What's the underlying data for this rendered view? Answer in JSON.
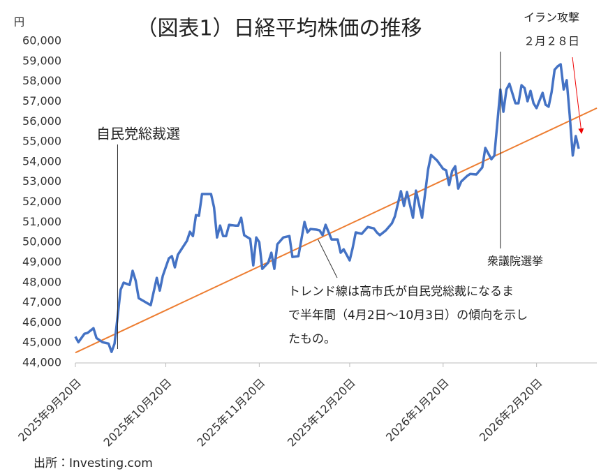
{
  "chart_data": {
    "type": "line",
    "title": "（図表1）日経平均株価の推移",
    "y_unit": "円",
    "source": "出所：Investing.com",
    "xlim": [
      "2025-09-20",
      "2026-03-12"
    ],
    "xticks": [
      {
        "value": "2025-09-20",
        "label": "2025年9月20日"
      },
      {
        "value": "2025-10-20",
        "label": "2025年10月20日"
      },
      {
        "value": "2025-11-20",
        "label": "2025年11月20日"
      },
      {
        "value": "2025-12-20",
        "label": "2025年12月20日"
      },
      {
        "value": "2026-01-20",
        "label": "2026年1月20日"
      },
      {
        "value": "2026-02-20",
        "label": "2026年2月20日"
      }
    ],
    "ylim": [
      44000,
      60000
    ],
    "yticks": [
      {
        "value": 44000,
        "label": "44,000"
      },
      {
        "value": 45000,
        "label": "45,000"
      },
      {
        "value": 46000,
        "label": "46,000"
      },
      {
        "value": 47000,
        "label": "47,000"
      },
      {
        "value": 48000,
        "label": "48,000"
      },
      {
        "value": 49000,
        "label": "49,000"
      },
      {
        "value": 50000,
        "label": "50,000"
      },
      {
        "value": 51000,
        "label": "51,000"
      },
      {
        "value": 52000,
        "label": "52,000"
      },
      {
        "value": 53000,
        "label": "53,000"
      },
      {
        "value": 54000,
        "label": "54,000"
      },
      {
        "value": 55000,
        "label": "55,000"
      },
      {
        "value": 56000,
        "label": "56,000"
      },
      {
        "value": 57000,
        "label": "57,000"
      },
      {
        "value": 58000,
        "label": "58,000"
      },
      {
        "value": 59000,
        "label": "59,000"
      },
      {
        "value": 60000,
        "label": "60,000"
      }
    ],
    "grid": false,
    "series": [
      {
        "color": "#4472c4",
        "x": [
          "2025-09-20",
          "2025-09-21",
          "2025-09-23",
          "2025-09-24",
          "2025-09-26",
          "2025-09-27",
          "2025-09-29",
          "2025-10-01",
          "2025-10-02",
          "2025-10-03",
          "2025-10-05",
          "2025-10-06",
          "2025-10-08",
          "2025-10-09",
          "2025-10-10",
          "2025-10-11",
          "2025-10-15",
          "2025-10-17",
          "2025-10-18",
          "2025-10-19",
          "2025-10-21",
          "2025-10-22",
          "2025-10-23",
          "2025-10-24",
          "2025-10-27",
          "2025-10-28",
          "2025-10-29",
          "2025-10-30",
          "2025-10-31",
          "2025-11-01",
          "2025-11-04",
          "2025-11-05",
          "2025-11-06",
          "2025-11-07",
          "2025-11-08",
          "2025-11-09",
          "2025-11-10",
          "2025-11-12",
          "2025-11-13",
          "2025-11-14",
          "2025-11-15",
          "2025-11-17",
          "2025-11-18",
          "2025-11-19",
          "2025-11-20",
          "2025-11-21",
          "2025-11-23",
          "2025-11-24",
          "2025-11-25",
          "2025-11-26",
          "2025-11-28",
          "2025-11-30",
          "2025-12-01",
          "2025-12-03",
          "2025-12-05",
          "2025-12-06",
          "2025-12-07",
          "2025-12-09",
          "2025-12-10",
          "2025-12-11",
          "2025-12-12",
          "2025-12-14",
          "2025-12-16",
          "2025-12-17",
          "2025-12-18",
          "2025-12-20",
          "2025-12-21",
          "2025-12-22",
          "2025-12-24",
          "2025-12-25",
          "2025-12-26",
          "2025-12-28",
          "2025-12-29",
          "2025-12-30",
          "2026-01-01",
          "2026-01-03",
          "2026-01-04",
          "2026-01-06",
          "2026-01-07",
          "2026-01-08",
          "2026-01-10",
          "2026-01-11",
          "2026-01-13",
          "2026-01-14",
          "2026-01-15",
          "2026-01-16",
          "2026-01-18",
          "2026-01-20",
          "2026-01-21",
          "2026-01-22",
          "2026-01-23",
          "2026-01-24",
          "2026-01-25",
          "2026-01-26",
          "2026-01-28",
          "2026-01-29",
          "2026-01-31",
          "2026-02-02",
          "2026-02-03",
          "2026-02-05",
          "2026-02-06",
          "2026-02-08",
          "2026-02-09",
          "2026-02-10",
          "2026-02-11",
          "2026-02-13",
          "2026-02-14",
          "2026-02-15",
          "2026-02-16",
          "2026-02-17",
          "2026-02-18",
          "2026-02-19",
          "2026-02-20",
          "2026-02-22",
          "2026-02-23",
          "2026-02-24",
          "2026-02-25",
          "2026-02-26",
          "2026-02-27",
          "2026-02-28",
          "2026-03-01",
          "2026-03-02",
          "2026-03-03",
          "2026-03-04",
          "2026-03-05",
          "2026-03-06"
        ],
        "values": [
          45310,
          45030,
          45450,
          45490,
          45730,
          45240,
          45030,
          44960,
          44550,
          44960,
          47640,
          47990,
          47880,
          48580,
          48090,
          47220,
          46870,
          48230,
          47600,
          48330,
          49200,
          49310,
          48750,
          49380,
          50070,
          50520,
          50310,
          51350,
          51320,
          52400,
          52400,
          51740,
          50240,
          50830,
          50310,
          50310,
          50870,
          50830,
          50830,
          51220,
          50350,
          50170,
          48850,
          50240,
          50000,
          48680,
          48990,
          49480,
          48680,
          49900,
          50240,
          50310,
          49270,
          49310,
          51010,
          50490,
          50660,
          50630,
          50590,
          50350,
          50870,
          50140,
          50140,
          49480,
          49650,
          49100,
          49720,
          50490,
          50420,
          50590,
          50760,
          50690,
          50490,
          50350,
          50590,
          50940,
          51290,
          52540,
          51810,
          52500,
          51220,
          52570,
          51220,
          52400,
          53610,
          54340,
          54060,
          53650,
          53580,
          52850,
          53540,
          53780,
          52670,
          53020,
          53300,
          53400,
          53370,
          53720,
          54690,
          54130,
          54310,
          57600,
          56490,
          57600,
          57880,
          56910,
          56910,
          57810,
          57670,
          57010,
          57530,
          56910,
          56670,
          57430,
          56840,
          56740,
          57470,
          58580,
          58750,
          58850,
          57600,
          58060,
          56320,
          54310,
          55280,
          54650
        ]
      },
      {
        "color": "#ed7d31",
        "x": [
          "2025-09-20",
          "2026-03-12"
        ],
        "values": [
          44510,
          56670
        ]
      }
    ],
    "annotations": [
      {
        "text": "自民党総裁選",
        "x": "2025-10-04"
      },
      {
        "text": "衆議院選挙",
        "x": "2026-02-08"
      },
      {
        "lines": [
          "イラン攻撃",
          "２月２８日"
        ]
      },
      {
        "lines": [
          "トレンド線は高市氏が自民党総裁になるま",
          "で半年間（4月2日～10月3日）の傾向を示し",
          "たもの。"
        ]
      }
    ]
  }
}
